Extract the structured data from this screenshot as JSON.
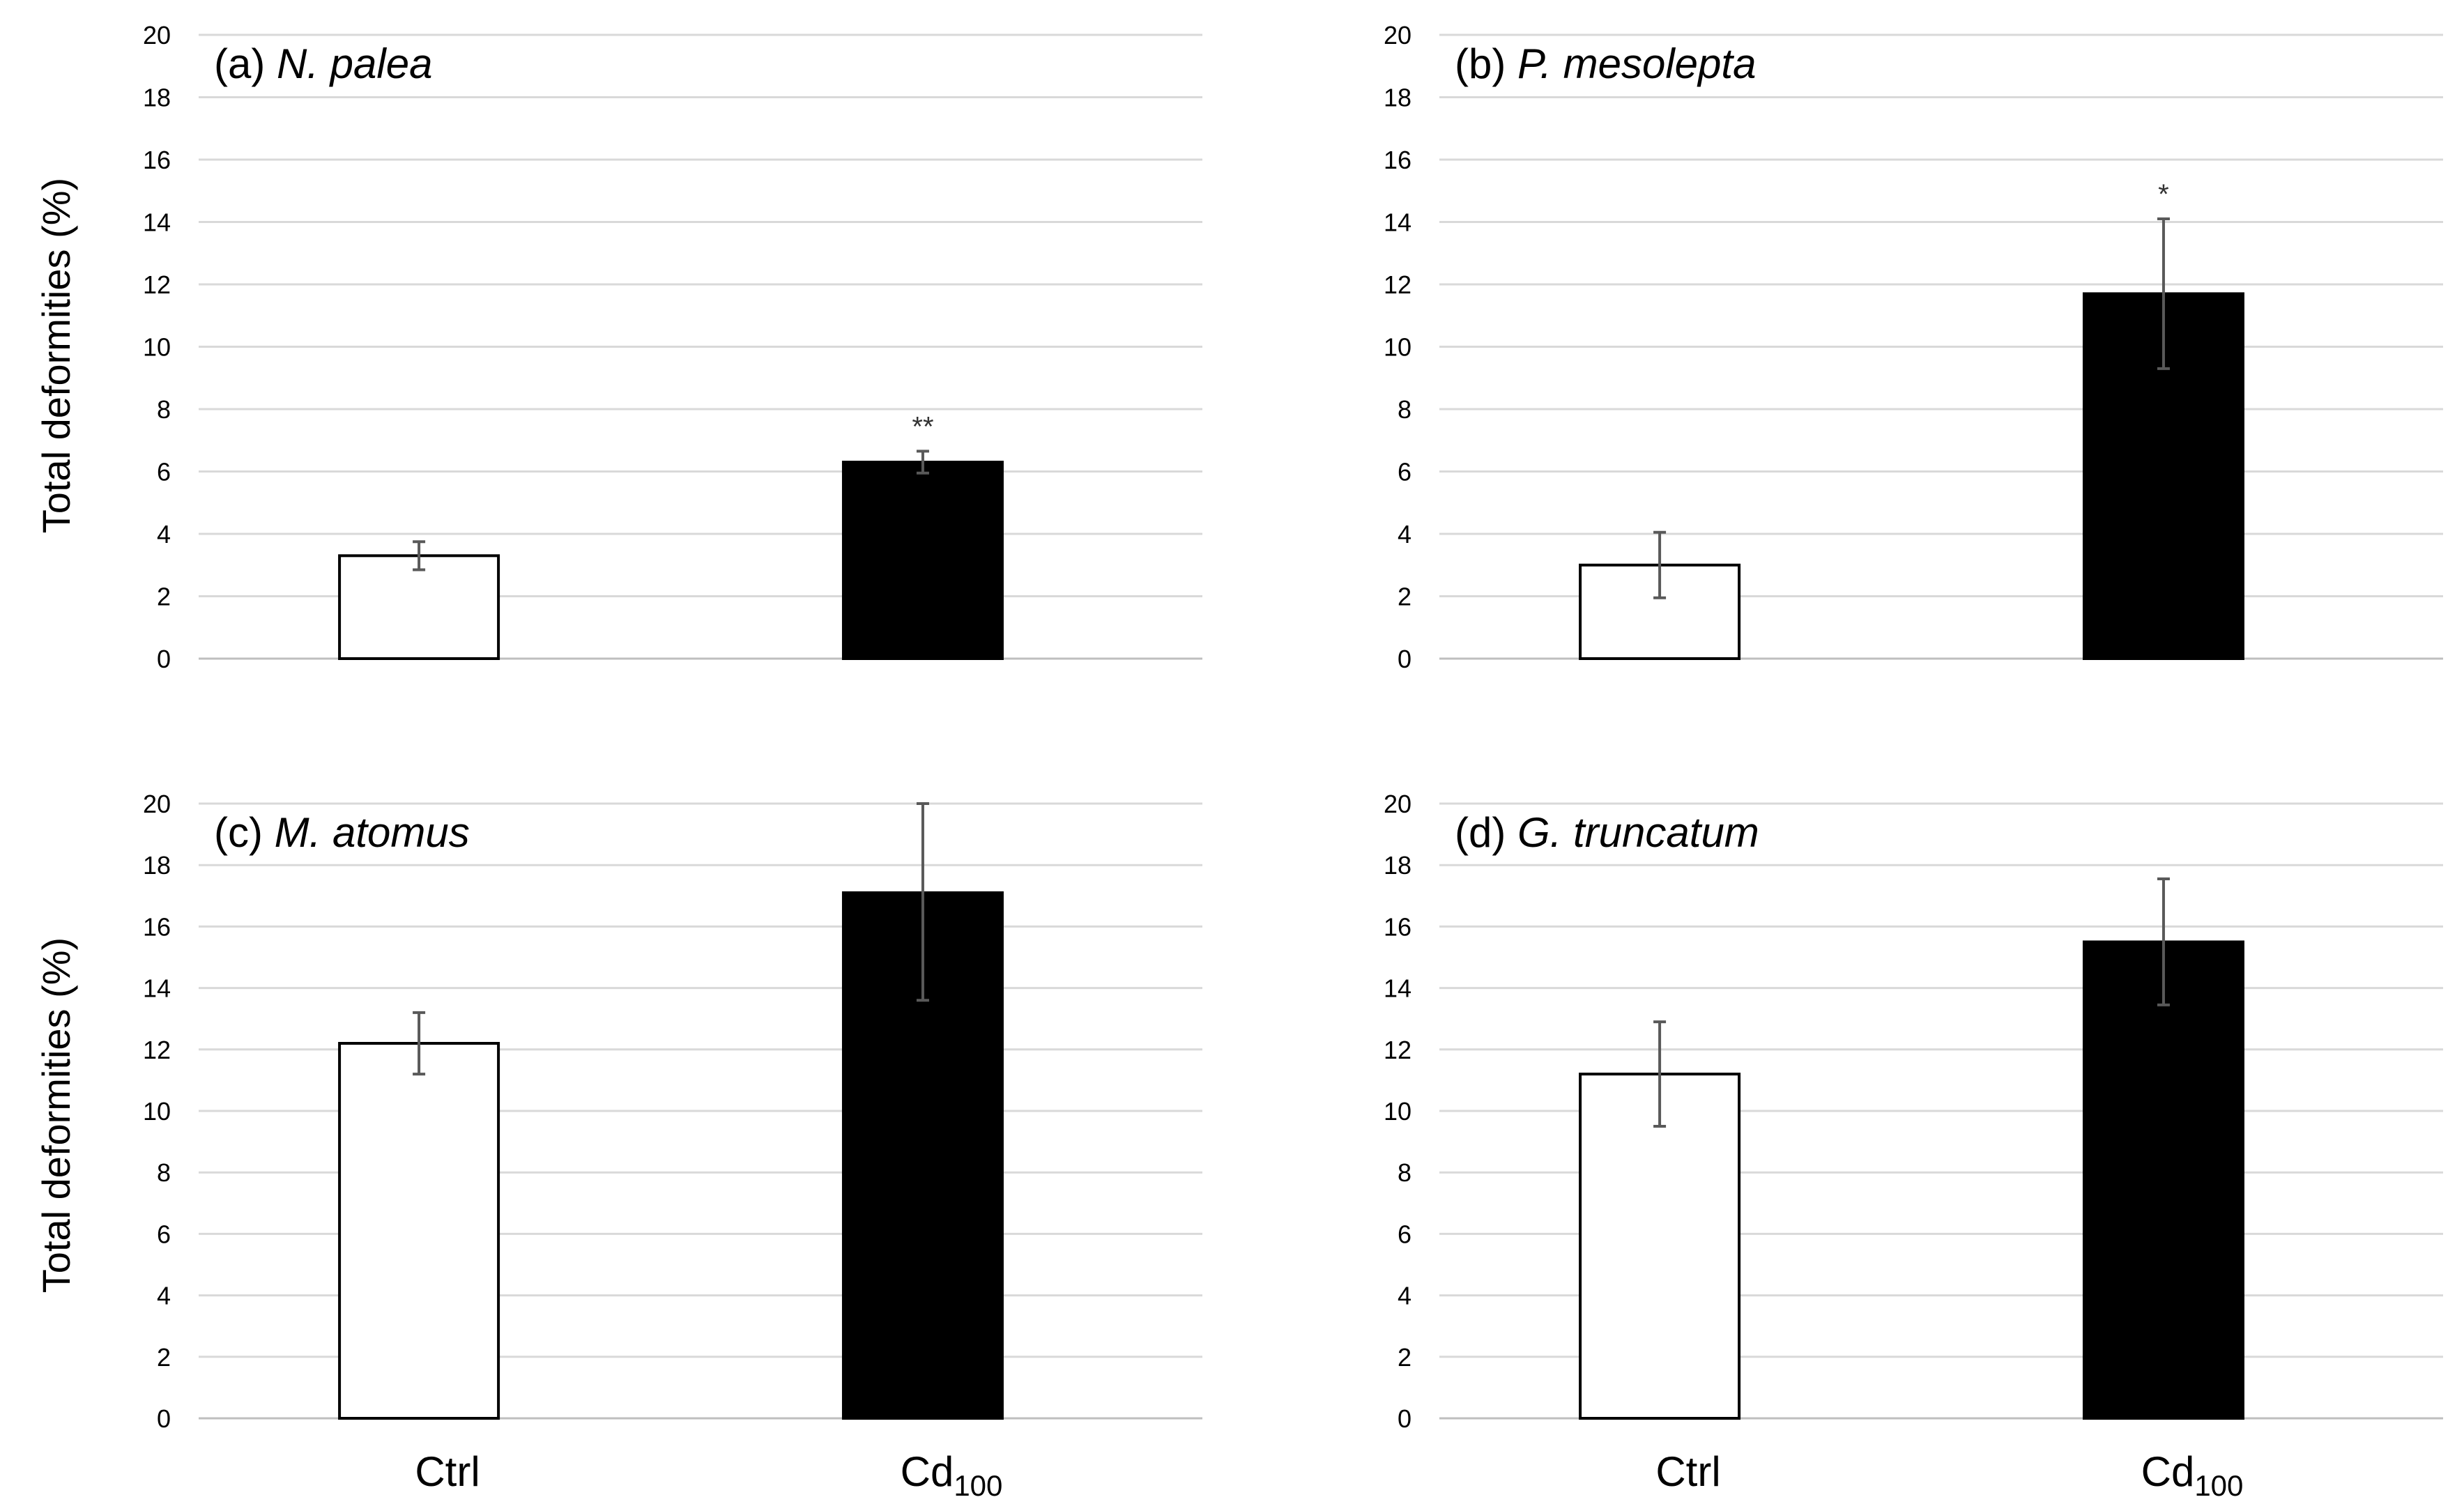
{
  "ylabel": "Total deformities (%)",
  "colors": {
    "ctrl_fill": "#ffffff",
    "cd_fill": "#000000",
    "grid": "#d9d9d9",
    "error": "#595959"
  },
  "chart_data": [
    {
      "type": "bar",
      "panel": "(a)",
      "species": "N. palea",
      "categories": [
        "Ctrl",
        "Cd100"
      ],
      "values": [
        3.3,
        6.3
      ],
      "errors": [
        0.45,
        0.35
      ],
      "significance": [
        "",
        "**"
      ],
      "ylim": [
        0,
        20
      ],
      "yticks": [
        0,
        2,
        4,
        6,
        8,
        10,
        12,
        14,
        16,
        18,
        20
      ],
      "grid": true
    },
    {
      "type": "bar",
      "panel": "(b)",
      "species": "P. mesolepta",
      "categories": [
        "Ctrl",
        "Cd100"
      ],
      "values": [
        3.0,
        11.7
      ],
      "errors": [
        1.05,
        2.4
      ],
      "significance": [
        "",
        "*"
      ],
      "ylim": [
        0,
        20
      ],
      "yticks": [
        0,
        2,
        4,
        6,
        8,
        10,
        12,
        14,
        16,
        18,
        20
      ],
      "grid": true
    },
    {
      "type": "bar",
      "panel": "(c)",
      "species": "M. atomus",
      "categories": [
        "Ctrl",
        "Cd100"
      ],
      "values": [
        12.2,
        17.1
      ],
      "errors": [
        1.0,
        3.5
      ],
      "significance": [
        "",
        ""
      ],
      "ylim": [
        0,
        20
      ],
      "yticks": [
        0,
        2,
        4,
        6,
        8,
        10,
        12,
        14,
        16,
        18,
        20
      ],
      "grid": true
    },
    {
      "type": "bar",
      "panel": "(d)",
      "species": "G. truncatum",
      "categories": [
        "Ctrl",
        "Cd100"
      ],
      "values": [
        11.2,
        15.5
      ],
      "errors": [
        1.7,
        2.05
      ],
      "significance": [
        "",
        ""
      ],
      "ylim": [
        0,
        20
      ],
      "yticks": [
        0,
        2,
        4,
        6,
        8,
        10,
        12,
        14,
        16,
        18,
        20
      ],
      "grid": true
    }
  ],
  "xlabels": {
    "ctrl": "Ctrl",
    "cd_base": "Cd",
    "cd_sub": "100"
  }
}
